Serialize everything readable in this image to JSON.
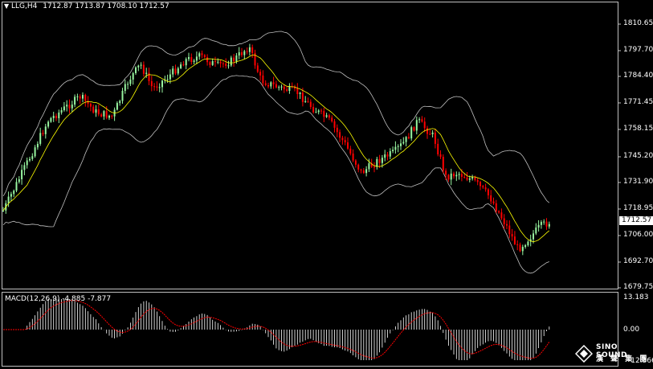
{
  "header": {
    "menu_icon": "triangle-down-icon",
    "symbol": "LLG,H4",
    "ohlc": "1712.87 1713.87 1708.10 1712.57"
  },
  "price_axis": {
    "labels": [
      "1810.65",
      "1797.70",
      "1784.40",
      "1771.45",
      "1758.15",
      "1745.20",
      "1731.90",
      "1718.95",
      "1706.00",
      "1692.70",
      "1679.75"
    ],
    "current_price": "1712.57"
  },
  "macd": {
    "label": "MACD(12,26,9) -4.885 -7.877",
    "axis_labels": [
      "13.183",
      "0.00",
      "-12.366"
    ]
  },
  "logo": {
    "text": "SINO SOUND",
    "subtext": "漢 聲 集 團"
  },
  "colors": {
    "background": "#000000",
    "bull": "#98f5a0",
    "bear": "#ff0000",
    "bands": "#c0c0c0",
    "ma": "#ffff00",
    "signal": "#ff0000",
    "histogram": "#ffffff"
  }
}
